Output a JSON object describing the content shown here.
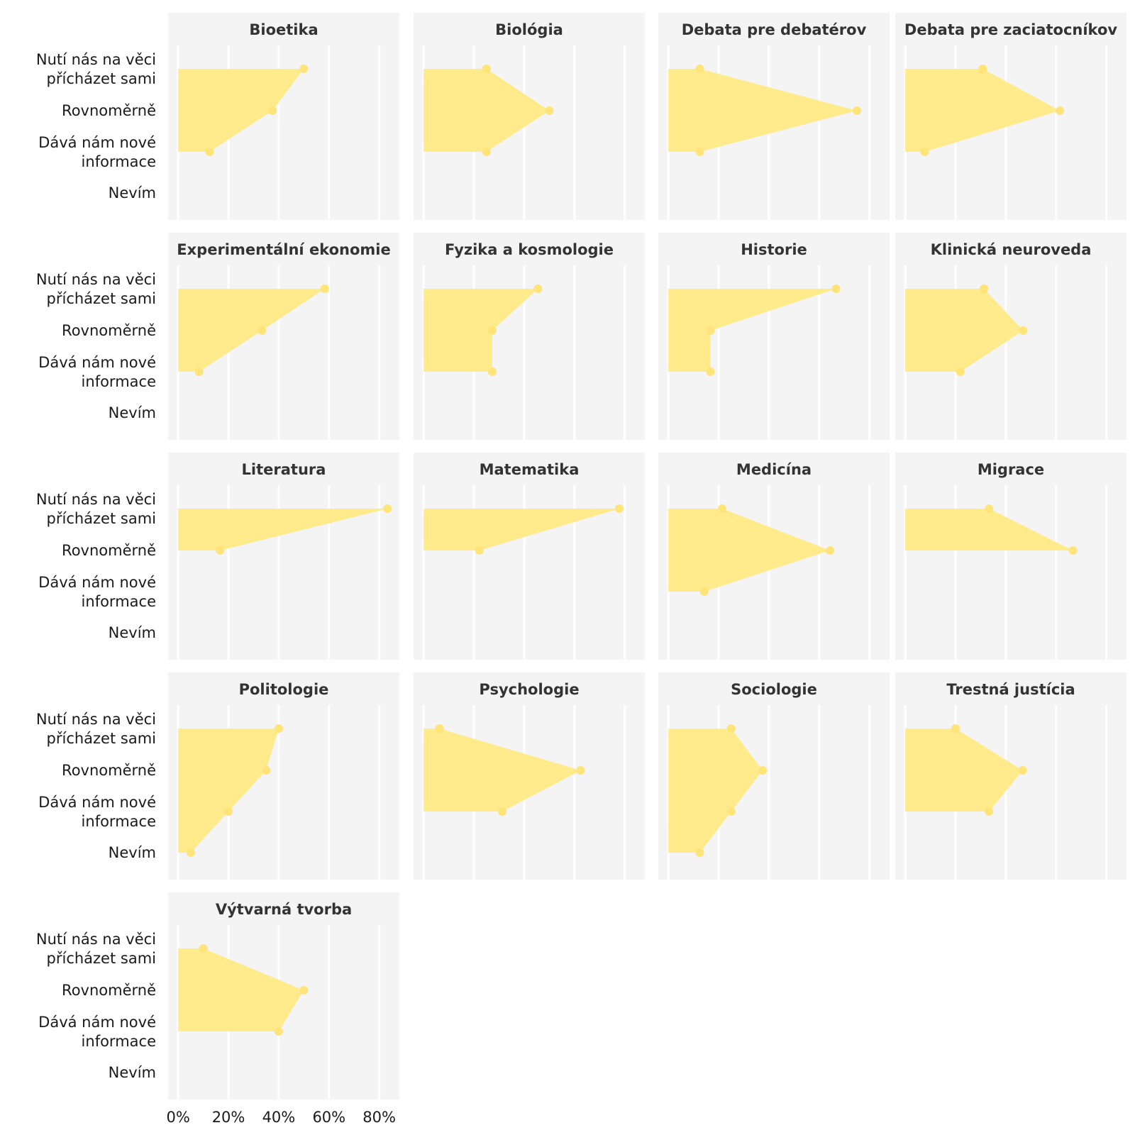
{
  "chart_data": {
    "type": "area",
    "orientation": "horizontal",
    "categories": [
      "Nutí nás na věci\npřícházet sami",
      "Rovnoměrně",
      "Dává nám nové\ninformace",
      "Nevím"
    ],
    "x_ticks": [
      "0%",
      "20%",
      "40%",
      "60%",
      "80%"
    ],
    "x_tick_values": [
      0,
      20,
      40,
      60,
      80
    ],
    "xlim": [
      -4,
      88
    ],
    "grid": true,
    "fill_color": "#ffeb8c",
    "point_color": "#ffe47a",
    "panel_color": "#f4f4f4",
    "facets": [
      {
        "title": "Bioetika",
        "values": [
          50,
          37.5,
          12.5,
          null
        ]
      },
      {
        "title": "Biológia",
        "values": [
          25,
          50,
          25,
          null
        ]
      },
      {
        "title": "Debata pre debatérov",
        "values": [
          12.5,
          75,
          12.5,
          null
        ]
      },
      {
        "title": "Debata pre zaciatocníkov",
        "values": [
          30.8,
          61.5,
          7.7,
          null
        ]
      },
      {
        "title": "Experimentální ekonomie",
        "values": [
          58.3,
          33.3,
          8.3,
          null
        ]
      },
      {
        "title": "Fyzika a kosmologie",
        "values": [
          45.5,
          27.3,
          27.3,
          null
        ]
      },
      {
        "title": "Historie",
        "values": [
          66.7,
          16.7,
          16.7,
          null
        ]
      },
      {
        "title": "Klinická neuroveda",
        "values": [
          31.3,
          46.9,
          21.9,
          null
        ]
      },
      {
        "title": "Literatura",
        "values": [
          83.3,
          16.7,
          null,
          null
        ]
      },
      {
        "title": "Matematika",
        "values": [
          77.8,
          22.2,
          null,
          null
        ]
      },
      {
        "title": "Medicína",
        "values": [
          21.4,
          64.3,
          14.3,
          null
        ]
      },
      {
        "title": "Migrace",
        "values": [
          33.3,
          66.7,
          null,
          null
        ]
      },
      {
        "title": "Politologie",
        "values": [
          40,
          35,
          20,
          5
        ]
      },
      {
        "title": "Psychologie",
        "values": [
          6.3,
          62.5,
          31.3,
          null
        ]
      },
      {
        "title": "Sociologie",
        "values": [
          25,
          37.5,
          25,
          12.5
        ]
      },
      {
        "title": "Trestná justícia",
        "values": [
          20,
          46.7,
          33.3,
          null
        ]
      },
      {
        "title": "Výtvarná tvorba",
        "values": [
          10,
          50,
          40,
          null
        ]
      }
    ]
  }
}
